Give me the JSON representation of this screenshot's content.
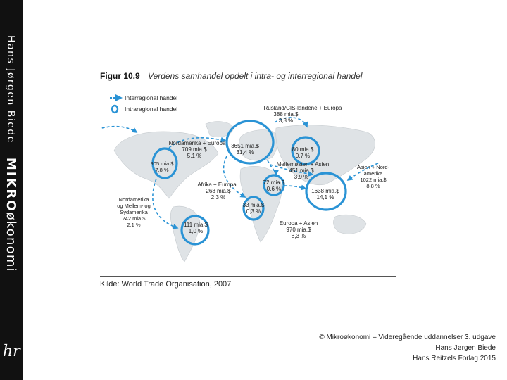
{
  "sidebar": {
    "author": "Hans Jørgen Biede",
    "title_bold": "MIKRO",
    "title_rest": "økonomi",
    "logo": "hr"
  },
  "figure": {
    "number": "Figur 10.9",
    "title": "Verdens samhandel opdelt i intra- og interregional handel",
    "legend": {
      "inter": "Interregional handel",
      "intra": "Intraregional handel"
    },
    "labels": {
      "russia_title": "Rusland/CIS-landene + Europa",
      "russia_value": "388 mia.$",
      "russia_pct": "3,3 %",
      "na_eu_title": "Nordamerika + Europa",
      "na_eu_value": "709 mia.$",
      "na_eu_pct": "5,1 %",
      "na_value": "905 mia.$",
      "na_pct": "7,8 %",
      "eu_value": "3651 mia.$",
      "eu_pct": "31,4 %",
      "cis_value": "80 mia.$",
      "cis_pct": "0,7 %",
      "me_title": "Mellemøsten + Asien",
      "me_value": "451 mia.$",
      "me_pct": "3,9 %",
      "asia_na_title_1": "Asien + Nord-",
      "asia_na_title_2": "amerika",
      "asia_na_value": "1022 mia.$",
      "asia_na_pct": "8,8 %",
      "africa_eu_title": "Afrika + Europa",
      "africa_eu_value": "268 mia.$",
      "africa_eu_pct": "2,3 %",
      "me_intra_value": "72 mia.$",
      "me_intra_pct": "0,6 %",
      "asia_value": "1638 mia.$",
      "asia_pct": "14,1 %",
      "americas_title_1": "Nordamerika",
      "americas_title_2": "og Mellem- og",
      "americas_title_3": "Sydamerika",
      "americas_value": "242 mia.$",
      "americas_pct": "2,1 %",
      "africa_value": "33 mia.$",
      "africa_pct": "0,3 %",
      "sa_value": "111 mia.$",
      "sa_pct": "1,0 %",
      "eu_asia_title": "Europa + Asien",
      "eu_asia_value": "970 mia.$",
      "eu_asia_pct": "8,3 %"
    },
    "source": "Kilde: World Trade Organisation, 2007"
  },
  "footer": {
    "line1": "© Mikroøkonomi – Videregående uddannelser 3. udgave",
    "line2": "Hans Jørgen Biede",
    "line3": "Hans Reitzels Forlag 2015"
  },
  "colors": {
    "accent": "#2a93d5",
    "land": "#dfe3e6",
    "sidebar": "#111111"
  }
}
